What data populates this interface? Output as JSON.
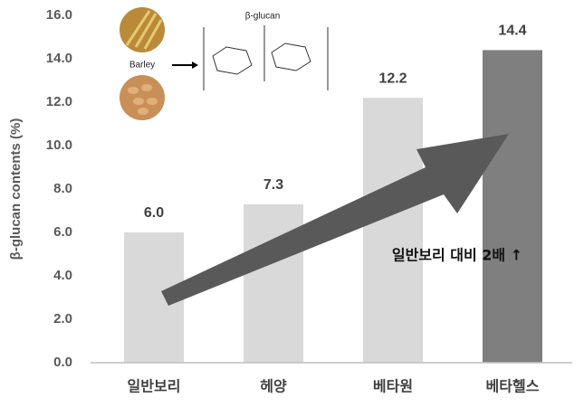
{
  "chart_data": {
    "type": "bar",
    "y_label": "β-glucan contents (%)",
    "categories": [
      "일반보리",
      "헤양",
      "베타원",
      "베타헬스"
    ],
    "values": [
      6.0,
      7.3,
      12.2,
      14.4
    ],
    "value_labels": [
      "6.0",
      "7.3",
      "12.2",
      "14.4"
    ],
    "colors": [
      "#d9d9d9",
      "#d9d9d9",
      "#d9d9d9",
      "#7f7f7f"
    ],
    "ylim": [
      0,
      16
    ],
    "yticks": [
      {
        "value": 0,
        "label": "0.0"
      },
      {
        "value": 2,
        "label": "2.0"
      },
      {
        "value": 4,
        "label": "4.0"
      },
      {
        "value": 6,
        "label": "6.0"
      },
      {
        "value": 8,
        "label": "8.0"
      },
      {
        "value": 10,
        "label": "10.0"
      },
      {
        "value": 12,
        "label": "12.0"
      },
      {
        "value": 14,
        "label": "14.0"
      },
      {
        "value": 16,
        "label": "16.0"
      }
    ],
    "grid": false,
    "annotations": [
      "일반보리 대비 2배 ↑",
      "β-glucan",
      "Barley"
    ]
  }
}
